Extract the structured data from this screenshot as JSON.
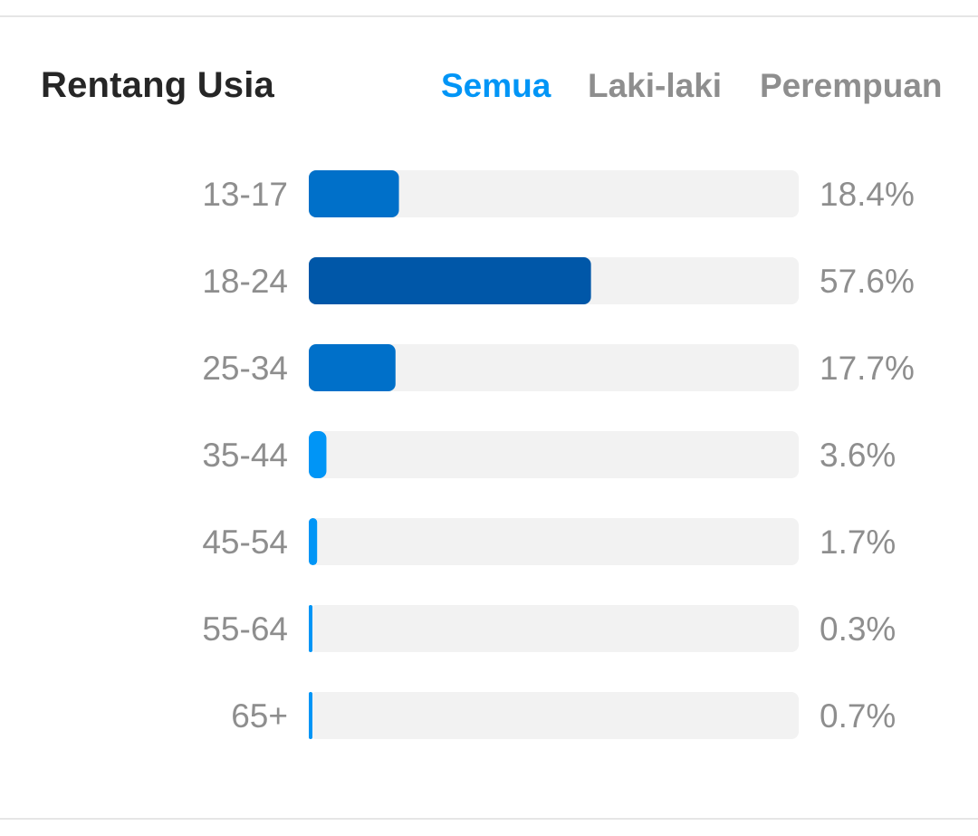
{
  "header": {
    "title": "Rentang Usia",
    "tabs": [
      {
        "label": "Semua",
        "active": true
      },
      {
        "label": "Laki-laki",
        "active": false
      },
      {
        "label": "Perempuan",
        "active": false
      }
    ]
  },
  "colors": {
    "bar_dark": "#0057a8",
    "bar_mid": "#0070c9",
    "bar_light": "#0095f6",
    "track": "#f2f2f2",
    "active_tab": "#0095f6",
    "muted_text": "#8e8e8e"
  },
  "chart_data": {
    "type": "bar",
    "orientation": "horizontal",
    "categories": [
      "13-17",
      "18-24",
      "25-34",
      "35-44",
      "45-54",
      "55-64",
      "65+"
    ],
    "values": [
      18.4,
      57.6,
      17.7,
      3.6,
      1.7,
      0.3,
      0.7
    ],
    "value_labels": [
      "18.4%",
      "57.6%",
      "17.7%",
      "3.6%",
      "1.7%",
      "0.3%",
      "0.7%"
    ],
    "unit": "%",
    "title": "",
    "xlabel": "",
    "ylabel": "",
    "xlim": [
      0,
      100
    ],
    "grid": false,
    "legend": "none"
  }
}
